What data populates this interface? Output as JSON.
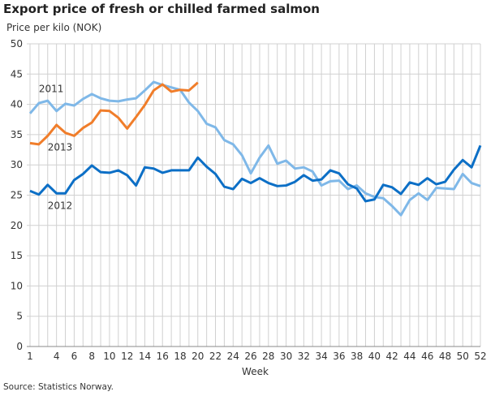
{
  "chart_data": {
    "type": "line",
    "title": "Export price of fresh or chilled farmed salmon",
    "ylabel": "Price per kilo (NOK)",
    "xlabel": "Week",
    "source": "Source: Statistics Norway.",
    "ylim": [
      0,
      50
    ],
    "yticks": [
      0,
      5,
      10,
      15,
      20,
      25,
      30,
      35,
      40,
      45,
      50
    ],
    "xlim": [
      1,
      52
    ],
    "xticks": [
      1,
      4,
      6,
      8,
      10,
      12,
      14,
      16,
      18,
      20,
      22,
      24,
      26,
      28,
      30,
      32,
      34,
      36,
      38,
      40,
      42,
      44,
      46,
      48,
      50,
      52
    ],
    "grid": true,
    "series": [
      {
        "name": "2011",
        "color": "#7fb8e8",
        "labelWeek": 2,
        "labelValue": 42,
        "values": [
          38.5,
          40.2,
          40.6,
          38.9,
          40.1,
          39.8,
          40.9,
          41.7,
          41.0,
          40.6,
          40.5,
          40.8,
          41.0,
          42.3,
          43.7,
          43.2,
          42.8,
          42.4,
          40.3,
          38.9,
          36.8,
          36.2,
          34.1,
          33.4,
          31.6,
          28.6,
          31.2,
          33.2,
          30.2,
          30.7,
          29.4,
          29.6,
          28.9,
          26.6,
          27.3,
          27.4,
          26.0,
          26.6,
          25.3,
          24.7,
          24.5,
          23.2,
          21.7,
          24.2,
          25.3,
          24.2,
          26.2,
          26.1,
          26.0,
          28.5,
          27.0,
          26.5
        ]
      },
      {
        "name": "2012",
        "color": "#0c6fc6",
        "labelWeek": 3,
        "labelValue": 22.7,
        "values": [
          25.7,
          25.1,
          26.7,
          25.3,
          25.3,
          27.5,
          28.5,
          29.9,
          28.8,
          28.7,
          29.1,
          28.3,
          26.6,
          29.6,
          29.4,
          28.7,
          29.1,
          29.1,
          29.1,
          31.2,
          29.7,
          28.5,
          26.4,
          26.0,
          27.7,
          27.0,
          27.8,
          27.0,
          26.5,
          26.6,
          27.2,
          28.3,
          27.4,
          27.6,
          29.1,
          28.6,
          26.8,
          26.1,
          24.0,
          24.3,
          26.7,
          26.3,
          25.2,
          27.1,
          26.7,
          27.8,
          26.8,
          27.2,
          29.2,
          30.8,
          29.6,
          33.2
        ]
      },
      {
        "name": "2013",
        "color": "#f07d2a",
        "labelWeek": 3,
        "labelValue": 32.4,
        "values": [
          33.6,
          33.4,
          34.8,
          36.6,
          35.3,
          34.8,
          36.1,
          37.0,
          39.0,
          38.9,
          37.8,
          36.0,
          37.9,
          39.9,
          42.3,
          43.3,
          42.1,
          42.4,
          42.3,
          43.6
        ]
      }
    ]
  }
}
